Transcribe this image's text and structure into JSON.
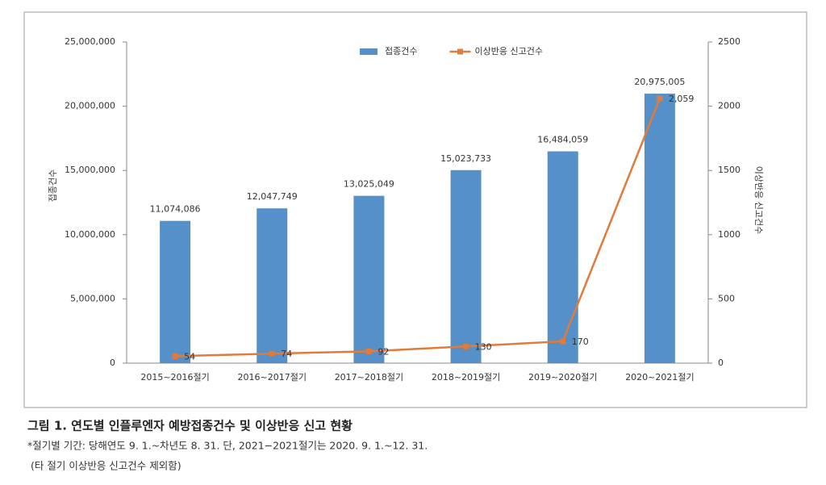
{
  "chart_data": {
    "type": "bar",
    "categories": [
      "2015~2016절기",
      "2016~2017절기",
      "2017~2018절기",
      "2018~2019절기",
      "2019~2020절기",
      "2020~2021절기"
    ],
    "series": [
      {
        "name": "접종건수",
        "type": "bar",
        "color": "#5591c8",
        "values": [
          11074086,
          12047749,
          13025049,
          15023733,
          16484059,
          20975005
        ],
        "value_labels": [
          "11,074,086",
          "12,047,749",
          "13,025,049",
          "15,023,733",
          "16,484,059",
          "20,975,005"
        ]
      },
      {
        "name": "이상반응 신고건수",
        "type": "line",
        "axis": "y2",
        "color": "#e07b3c",
        "values": [
          54,
          74,
          92,
          130,
          170,
          2059
        ],
        "value_labels": [
          "54",
          "74",
          "92",
          "130",
          "170",
          "2,059"
        ]
      }
    ],
    "ylabel": "접종건수",
    "y2label": "이상반응 신고건수",
    "ylim": [
      0,
      25000000
    ],
    "yticks": [
      0,
      {
        "value": 5000000,
        "label": "5,000,000"
      },
      {
        "value": 10000000,
        "label": "10,000,000"
      },
      {
        "value": 15000000,
        "label": "15,000,000"
      },
      {
        "value": 20000000,
        "label": "20,000,000"
      },
      {
        "value": 25000000,
        "label": "25,000,000"
      }
    ],
    "y2lim": [
      0,
      2500
    ],
    "y2ticks": [
      0,
      500,
      1000,
      1500,
      2000,
      2500
    ],
    "legend": "top",
    "grid": false
  },
  "caption": "그림 1. 연도별 인플루엔자 예방접종건수 및 이상반응 신고 현황",
  "notes": [
    "*절기별 기간: 당해연도 9. 1.~차년도 8. 31. 단, 2021−2021절기는 2020. 9. 1.~12. 31.",
    "(타 절기 이상반응 신고건수 제외함)"
  ]
}
